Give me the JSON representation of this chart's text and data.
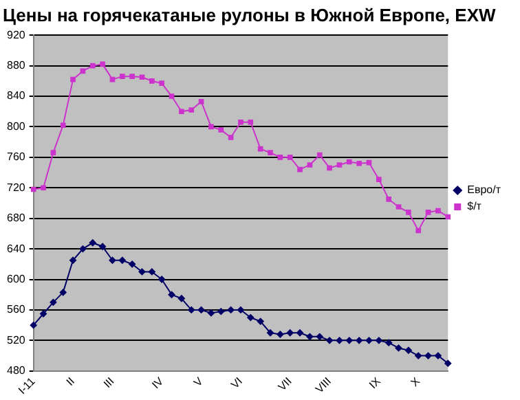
{
  "chart_data": {
    "type": "line",
    "title": "Цены на горячекатаные рулоны в Южной Европе, EXW",
    "categories": [
      "I-11",
      null,
      null,
      null,
      "II",
      null,
      null,
      null,
      "III",
      null,
      null,
      null,
      null,
      "IV",
      null,
      null,
      null,
      "V",
      null,
      null,
      null,
      "VI",
      null,
      null,
      null,
      null,
      "VII",
      null,
      null,
      null,
      "VIII",
      null,
      null,
      null,
      null,
      "IX",
      null,
      null,
      null,
      "X",
      null,
      null,
      null
    ],
    "series": [
      {
        "name": "Евро/т",
        "color": "#000066",
        "marker": "diamond",
        "values": [
          540,
          555,
          570,
          583,
          625,
          640,
          648,
          643,
          625,
          625,
          620,
          610,
          610,
          600,
          580,
          575,
          560,
          560,
          556,
          558,
          560,
          560,
          550,
          545,
          530,
          528,
          530,
          530,
          525,
          525,
          520,
          520,
          520,
          520,
          520,
          520,
          517,
          510,
          507,
          500,
          500,
          500,
          490
        ]
      },
      {
        "name": "$/т",
        "color": "#cc33cc",
        "marker": "square",
        "values": [
          718,
          720,
          766,
          802,
          862,
          873,
          880,
          882,
          862,
          866,
          866,
          865,
          860,
          857,
          840,
          820,
          822,
          833,
          800,
          796,
          786,
          806,
          806,
          771,
          766,
          760,
          760,
          744,
          750,
          763,
          746,
          750,
          754,
          752,
          753,
          731,
          705,
          695,
          688,
          664,
          688,
          690,
          682
        ]
      }
    ],
    "ylim": [
      480,
      920
    ],
    "yticks": [
      480,
      520,
      560,
      600,
      640,
      680,
      720,
      760,
      800,
      840,
      880,
      920
    ],
    "grid": "y",
    "legend": "right"
  }
}
